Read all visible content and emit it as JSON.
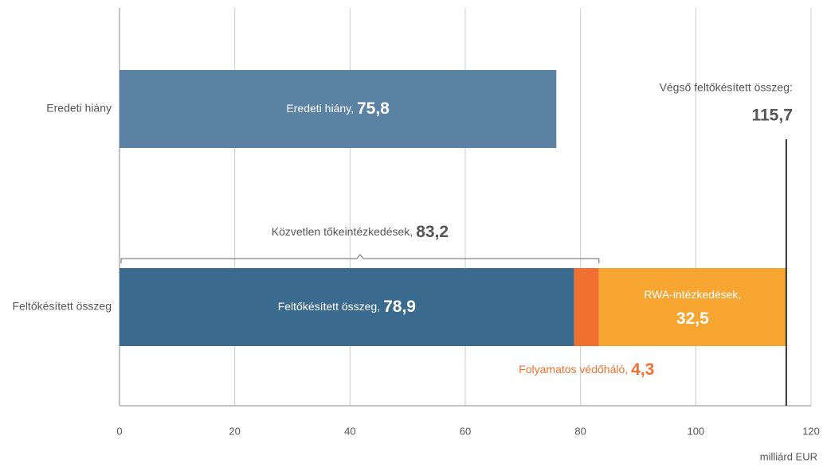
{
  "chart_data": {
    "type": "stacked-barh",
    "categories": [
      "Eredeti hiány",
      "Feltőkésített összeg"
    ],
    "series": [
      {
        "label": "Eredeti hiány,",
        "color": "#5b82a3",
        "values": [
          75.8,
          null
        ],
        "value_labels": [
          "75,8",
          null
        ]
      },
      {
        "label": "Feltőkésített összeg,",
        "color": "#3a6a8e",
        "values": [
          null,
          78.9
        ],
        "value_labels": [
          null,
          "78,9"
        ]
      },
      {
        "label": "Folyamatos védőháló,",
        "color": "#f07030",
        "values": [
          null,
          4.3
        ],
        "value_labels": [
          null,
          "4,3"
        ]
      },
      {
        "label": "RWA-intézkedések,",
        "color": "#f7a531",
        "values": [
          null,
          32.5
        ],
        "value_labels": [
          null,
          "32,5"
        ]
      }
    ],
    "xlim": [
      0,
      120
    ],
    "xticks": [
      0,
      20,
      40,
      60,
      80,
      100,
      120
    ],
    "x_label": "milliárd EUR",
    "grid": true,
    "annotations": [
      {
        "kind": "total-line",
        "text": "Végső feltőkésített összeg:",
        "value": 115.7,
        "value_label": "115,7"
      },
      {
        "kind": "bracket",
        "text": "Közvetlen tőkeintézkedések,",
        "value": 83.2,
        "value_label": "83,2"
      }
    ]
  }
}
